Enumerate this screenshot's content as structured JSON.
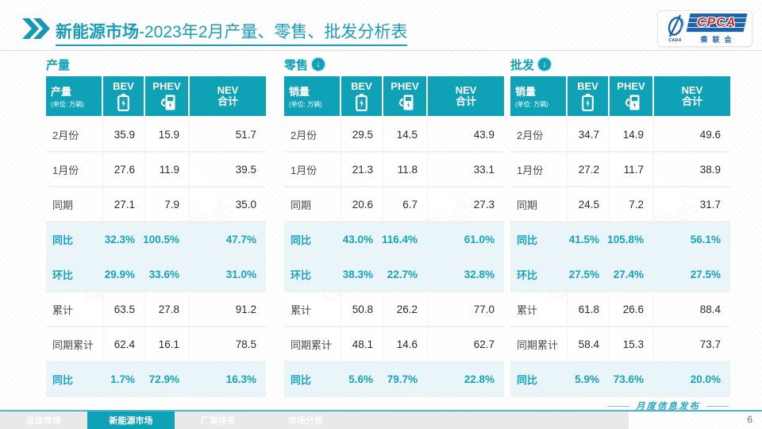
{
  "title": {
    "highlight": "新能源市场",
    "rest": "-2023年2月产量、零售、批发分析表"
  },
  "logo": {
    "name": "CPCA",
    "subtitle": "乘联会",
    "brand": "CADA",
    "watermark": "CPCA 乘联会"
  },
  "colors": {
    "accent_teal": "#0fa1b6",
    "highlight_row_bg": "#e9f5f9",
    "logo_blue": "#1b63ad",
    "logo_red": "#d6232a"
  },
  "sections": [
    {
      "title": "产量",
      "has_down_arrow": false,
      "row_header": "产量",
      "unit": "(单位: 万辆)",
      "col_bev": "BEV",
      "col_phev": "PHEV",
      "col_nev_1": "NEV",
      "col_nev_2": "合计",
      "rows": [
        {
          "label": "2月份",
          "values": [
            "35.9",
            "15.9",
            "51.7"
          ],
          "highlight": false
        },
        {
          "label": "1月份",
          "values": [
            "27.6",
            "11.9",
            "39.5"
          ],
          "highlight": false
        },
        {
          "label": "同期",
          "values": [
            "27.1",
            "7.9",
            "35.0"
          ],
          "highlight": false
        },
        {
          "label": "同比",
          "values": [
            "32.3%",
            "100.5%",
            "47.7%"
          ],
          "highlight": true
        },
        {
          "label": "环比",
          "values": [
            "29.9%",
            "33.6%",
            "31.0%"
          ],
          "highlight": true
        },
        {
          "label": "累计",
          "values": [
            "63.5",
            "27.8",
            "91.2"
          ],
          "highlight": false
        },
        {
          "label": "同期累计",
          "values": [
            "62.4",
            "16.1",
            "78.5"
          ],
          "highlight": false
        },
        {
          "label": "同比",
          "values": [
            "1.7%",
            "72.9%",
            "16.3%"
          ],
          "highlight": true
        }
      ]
    },
    {
      "title": "零售",
      "has_down_arrow": true,
      "row_header": "销量",
      "unit": "(单位: 万辆)",
      "col_bev": "BEV",
      "col_phev": "PHEV",
      "col_nev_1": "NEV",
      "col_nev_2": "合计",
      "rows": [
        {
          "label": "2月份",
          "values": [
            "29.5",
            "14.5",
            "43.9"
          ],
          "highlight": false
        },
        {
          "label": "1月份",
          "values": [
            "21.3",
            "11.8",
            "33.1"
          ],
          "highlight": false
        },
        {
          "label": "同期",
          "values": [
            "20.6",
            "6.7",
            "27.3"
          ],
          "highlight": false
        },
        {
          "label": "同比",
          "values": [
            "43.0%",
            "116.4%",
            "61.0%"
          ],
          "highlight": true
        },
        {
          "label": "环比",
          "values": [
            "38.3%",
            "22.7%",
            "32.8%"
          ],
          "highlight": true
        },
        {
          "label": "累计",
          "values": [
            "50.8",
            "26.2",
            "77.0"
          ],
          "highlight": false
        },
        {
          "label": "同期累计",
          "values": [
            "48.1",
            "14.6",
            "62.7"
          ],
          "highlight": false
        },
        {
          "label": "同比",
          "values": [
            "5.6%",
            "79.7%",
            "22.8%"
          ],
          "highlight": true
        }
      ]
    },
    {
      "title": "批发",
      "has_down_arrow": true,
      "row_header": "销量",
      "unit": "(单位: 万辆)",
      "col_bev": "BEV",
      "col_phev": "PHEV",
      "col_nev_1": "NEV",
      "col_nev_2": "合计",
      "rows": [
        {
          "label": "2月份",
          "values": [
            "34.7",
            "14.9",
            "49.6"
          ],
          "highlight": false
        },
        {
          "label": "1月份",
          "values": [
            "27.2",
            "11.7",
            "38.9"
          ],
          "highlight": false
        },
        {
          "label": "同期",
          "values": [
            "24.5",
            "7.2",
            "31.7"
          ],
          "highlight": false
        },
        {
          "label": "同比",
          "values": [
            "41.5%",
            "105.8%",
            "56.1%"
          ],
          "highlight": true
        },
        {
          "label": "环比",
          "values": [
            "27.5%",
            "27.4%",
            "27.5%"
          ],
          "highlight": true
        },
        {
          "label": "累计",
          "values": [
            "61.8",
            "26.6",
            "88.4"
          ],
          "highlight": false
        },
        {
          "label": "同期累计",
          "values": [
            "58.4",
            "15.3",
            "73.7"
          ],
          "highlight": false
        },
        {
          "label": "同比",
          "values": [
            "5.9%",
            "73.6%",
            "20.0%"
          ],
          "highlight": true
        }
      ]
    }
  ],
  "footer": {
    "tabs": [
      {
        "label": "总体市场",
        "active": false
      },
      {
        "label": "新能源市场",
        "active": true
      },
      {
        "label": "厂商排名",
        "active": false
      },
      {
        "label": "市场分析",
        "active": false
      }
    ],
    "note": "月度信息发布",
    "page_number": "6"
  }
}
